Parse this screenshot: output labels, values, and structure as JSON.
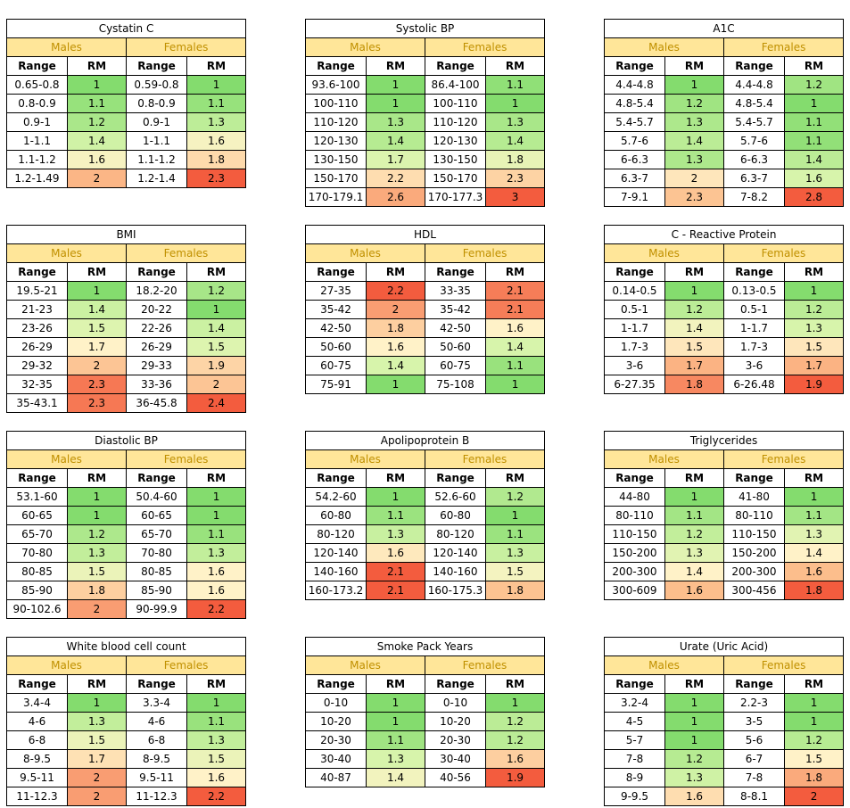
{
  "labels": {
    "males": "Males",
    "females": "Females",
    "range": "Range",
    "rm": "RM"
  },
  "tables": [
    {
      "title": "Cystatin C",
      "males": [
        [
          "0.65-0.8",
          "1"
        ],
        [
          "0.8-0.9",
          "1.1"
        ],
        [
          "0.9-1",
          "1.2"
        ],
        [
          "1-1.1",
          "1.4"
        ],
        [
          "1.1-1.2",
          "1.6"
        ],
        [
          "1.2-1.49",
          "2"
        ]
      ],
      "females": [
        [
          "0.59-0.8",
          "1"
        ],
        [
          "0.8-0.9",
          "1.1"
        ],
        [
          "0.9-1",
          "1.3"
        ],
        [
          "1-1.1",
          "1.6"
        ],
        [
          "1.1-1.2",
          "1.8"
        ],
        [
          "1.2-1.4",
          "2.3"
        ]
      ]
    },
    {
      "title": "Systolic BP",
      "males": [
        [
          "93.6-100",
          "1"
        ],
        [
          "100-110",
          "1"
        ],
        [
          "110-120",
          "1.3"
        ],
        [
          "120-130",
          "1.4"
        ],
        [
          "130-150",
          "1.7"
        ],
        [
          "150-170",
          "2.2"
        ],
        [
          "170-179.1",
          "2.6"
        ]
      ],
      "females": [
        [
          "86.4-100",
          "1.1"
        ],
        [
          "100-110",
          "1"
        ],
        [
          "110-120",
          "1.3"
        ],
        [
          "120-130",
          "1.4"
        ],
        [
          "130-150",
          "1.8"
        ],
        [
          "150-170",
          "2.3"
        ],
        [
          "170-177.3",
          "3"
        ]
      ]
    },
    {
      "title": "A1C",
      "males": [
        [
          "4.4-4.8",
          "1"
        ],
        [
          "4.8-5.4",
          "1.2"
        ],
        [
          "5.4-5.7",
          "1.3"
        ],
        [
          "5.7-6",
          "1.4"
        ],
        [
          "6-6.3",
          "1.3"
        ],
        [
          "6.3-7",
          "2"
        ],
        [
          "7-9.1",
          "2.3"
        ]
      ],
      "females": [
        [
          "4.4-4.8",
          "1.2"
        ],
        [
          "4.8-5.4",
          "1"
        ],
        [
          "5.4-5.7",
          "1.1"
        ],
        [
          "5.7-6",
          "1.1"
        ],
        [
          "6-6.3",
          "1.4"
        ],
        [
          "6.3-7",
          "1.6"
        ],
        [
          "7-8.2",
          "2.8"
        ]
      ]
    },
    {
      "title": "BMI",
      "males": [
        [
          "19.5-21",
          "1"
        ],
        [
          "21-23",
          "1.4"
        ],
        [
          "23-26",
          "1.5"
        ],
        [
          "26-29",
          "1.7"
        ],
        [
          "29-32",
          "2"
        ],
        [
          "32-35",
          "2.3"
        ],
        [
          "35-43.1",
          "2.3"
        ]
      ],
      "females": [
        [
          "18.2-20",
          "1.2"
        ],
        [
          "20-22",
          "1"
        ],
        [
          "22-26",
          "1.4"
        ],
        [
          "26-29",
          "1.5"
        ],
        [
          "29-33",
          "1.9"
        ],
        [
          "33-36",
          "2"
        ],
        [
          "36-45.8",
          "2.4"
        ]
      ]
    },
    {
      "title": "HDL",
      "males": [
        [
          "27-35",
          "2.2"
        ],
        [
          "35-42",
          "2"
        ],
        [
          "42-50",
          "1.8"
        ],
        [
          "50-60",
          "1.6"
        ],
        [
          "60-75",
          "1.4"
        ],
        [
          "75-91",
          "1"
        ]
      ],
      "females": [
        [
          "33-35",
          "2.1"
        ],
        [
          "35-42",
          "2.1"
        ],
        [
          "42-50",
          "1.6"
        ],
        [
          "50-60",
          "1.4"
        ],
        [
          "60-75",
          "1.1"
        ],
        [
          "75-108",
          "1"
        ]
      ]
    },
    {
      "title": "C - Reactive Protein",
      "males": [
        [
          "0.14-0.5",
          "1"
        ],
        [
          "0.5-1",
          "1.2"
        ],
        [
          "1-1.7",
          "1.4"
        ],
        [
          "1.7-3",
          "1.5"
        ],
        [
          "3-6",
          "1.7"
        ],
        [
          "6-27.35",
          "1.8"
        ]
      ],
      "females": [
        [
          "0.13-0.5",
          "1"
        ],
        [
          "0.5-1",
          "1.2"
        ],
        [
          "1-1.7",
          "1.3"
        ],
        [
          "1.7-3",
          "1.5"
        ],
        [
          "3-6",
          "1.7"
        ],
        [
          "6-26.48",
          "1.9"
        ]
      ]
    },
    {
      "title": "Diastolic BP",
      "males": [
        [
          "53.1-60",
          "1"
        ],
        [
          "60-65",
          "1"
        ],
        [
          "65-70",
          "1.2"
        ],
        [
          "70-80",
          "1.3"
        ],
        [
          "80-85",
          "1.5"
        ],
        [
          "85-90",
          "1.8"
        ],
        [
          "90-102.6",
          "2"
        ]
      ],
      "females": [
        [
          "50.4-60",
          "1"
        ],
        [
          "60-65",
          "1"
        ],
        [
          "65-70",
          "1.1"
        ],
        [
          "70-80",
          "1.3"
        ],
        [
          "80-85",
          "1.6"
        ],
        [
          "85-90",
          "1.6"
        ],
        [
          "90-99.9",
          "2.2"
        ]
      ]
    },
    {
      "title": "Apolipoprotein B",
      "males": [
        [
          "54.2-60",
          "1"
        ],
        [
          "60-80",
          "1.1"
        ],
        [
          "80-120",
          "1.3"
        ],
        [
          "120-140",
          "1.6"
        ],
        [
          "140-160",
          "2.1"
        ],
        [
          "160-173.2",
          "2.1"
        ]
      ],
      "females": [
        [
          "52.6-60",
          "1.2"
        ],
        [
          "60-80",
          "1"
        ],
        [
          "80-120",
          "1.1"
        ],
        [
          "120-140",
          "1.3"
        ],
        [
          "140-160",
          "1.5"
        ],
        [
          "160-175.3",
          "1.8"
        ]
      ]
    },
    {
      "title": "Triglycerides",
      "males": [
        [
          "44-80",
          "1"
        ],
        [
          "80-110",
          "1.1"
        ],
        [
          "110-150",
          "1.2"
        ],
        [
          "150-200",
          "1.3"
        ],
        [
          "200-300",
          "1.4"
        ],
        [
          "300-609",
          "1.6"
        ]
      ],
      "females": [
        [
          "41-80",
          "1"
        ],
        [
          "80-110",
          "1.1"
        ],
        [
          "110-150",
          "1.3"
        ],
        [
          "150-200",
          "1.4"
        ],
        [
          "200-300",
          "1.6"
        ],
        [
          "300-456",
          "1.8"
        ]
      ]
    },
    {
      "title": "White blood cell count",
      "males": [
        [
          "3.4-4",
          "1"
        ],
        [
          "4-6",
          "1.3"
        ],
        [
          "6-8",
          "1.5"
        ],
        [
          "8-9.5",
          "1.7"
        ],
        [
          "9.5-11",
          "2"
        ],
        [
          "11-12.3",
          "2"
        ]
      ],
      "females": [
        [
          "3.3-4",
          "1"
        ],
        [
          "4-6",
          "1.1"
        ],
        [
          "6-8",
          "1.3"
        ],
        [
          "8-9.5",
          "1.5"
        ],
        [
          "9.5-11",
          "1.6"
        ],
        [
          "11-12.3",
          "2.2"
        ]
      ]
    },
    {
      "title": "Smoke Pack Years",
      "males": [
        [
          "0-10",
          "1"
        ],
        [
          "10-20",
          "1"
        ],
        [
          "20-30",
          "1.1"
        ],
        [
          "30-40",
          "1.3"
        ],
        [
          "40-87",
          "1.4"
        ]
      ],
      "females": [
        [
          "0-10",
          "1"
        ],
        [
          "10-20",
          "1.2"
        ],
        [
          "20-30",
          "1.2"
        ],
        [
          "30-40",
          "1.6"
        ],
        [
          "40-56",
          "1.9"
        ]
      ]
    },
    {
      "title": "Urate (Uric Acid)",
      "males": [
        [
          "3.2-4",
          "1"
        ],
        [
          "4-5",
          "1"
        ],
        [
          "5-7",
          "1"
        ],
        [
          "7-8",
          "1.2"
        ],
        [
          "8-9",
          "1.3"
        ],
        [
          "9-9.5",
          "1.6"
        ]
      ],
      "females": [
        [
          "2.2-3",
          "1"
        ],
        [
          "3-5",
          "1"
        ],
        [
          "5-6",
          "1.2"
        ],
        [
          "6-7",
          "1.5"
        ],
        [
          "7-8",
          "1.8"
        ],
        [
          "8-8.1",
          "2"
        ]
      ]
    }
  ]
}
